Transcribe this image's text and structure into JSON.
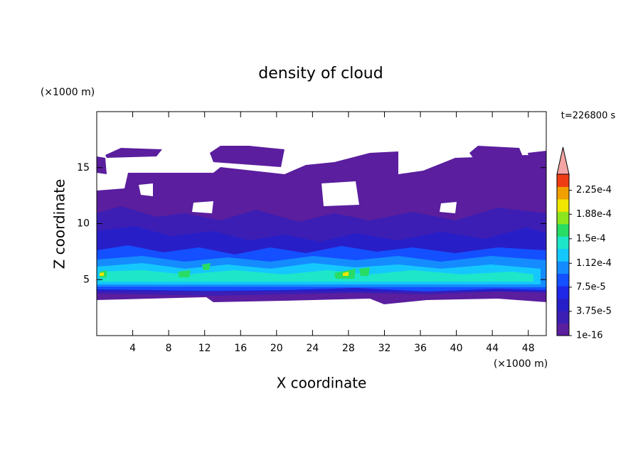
{
  "chart_data": {
    "type": "contour",
    "title": "density of cloud",
    "x_label": "X coordinate",
    "y_label": "Z coordinate",
    "x_unit": "(×1000 m)",
    "y_unit": "(×1000 m)",
    "annotation": "t=226800 s",
    "xlim": [
      0,
      50
    ],
    "ylim": [
      0,
      20
    ],
    "xticks": [
      4,
      8,
      12,
      16,
      20,
      24,
      28,
      32,
      36,
      40,
      44,
      48
    ],
    "yticks": [
      5,
      10,
      15
    ],
    "colorbar": {
      "lim": [
        1e-16,
        0.00025
      ],
      "ticks": [
        {
          "value": 1e-16,
          "label": "1e-16"
        },
        {
          "value": 3.75e-05,
          "label": "3.75e-5"
        },
        {
          "value": 7.5e-05,
          "label": "7.5e-5"
        },
        {
          "value": 0.000112,
          "label": "1.12e-4"
        },
        {
          "value": 0.00015,
          "label": "1.5e-4"
        },
        {
          "value": 0.000188,
          "label": "1.88e-4"
        },
        {
          "value": 0.000225,
          "label": "2.25e-4"
        }
      ],
      "colors": [
        "#5a1e9e",
        "#3c1eb4",
        "#281ec8",
        "#1e28e6",
        "#1450ff",
        "#148cff",
        "#14c8ff",
        "#1ee6c8",
        "#28dc64",
        "#8ce61e",
        "#f0e600",
        "#f0a000",
        "#f03c14"
      ],
      "extend": "max",
      "extend_color": "#f4a4a4"
    }
  }
}
